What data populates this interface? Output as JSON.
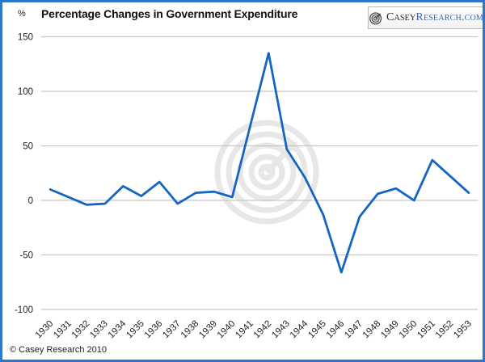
{
  "header": {
    "percent_label": "%",
    "title": "Percentage Changes in Government Expenditure",
    "logo": {
      "brand_primary": "Casey",
      "brand_secondary": "Research.com"
    }
  },
  "footer": {
    "copyright": "© Casey Research 2010"
  },
  "colors": {
    "line": "#1565c4",
    "frame_border": "#2b77cc",
    "grid": "#c6c6c6",
    "tick_text": "#222222",
    "watermark": "#e7e7e7",
    "logo_primary_text": "#222222",
    "logo_secondary_text": "#3a66b0"
  },
  "chart_data": {
    "type": "line",
    "title": "Percentage Changes in Government Expenditure",
    "ylabel": "%",
    "xlabel": "",
    "categories": [
      "1930",
      "1931",
      "1932",
      "1933",
      "1934",
      "1935",
      "1936",
      "1937",
      "1938",
      "1939",
      "1940",
      "1941",
      "1942",
      "1943",
      "1944",
      "1945",
      "1946",
      "1947",
      "1948",
      "1949",
      "1950",
      "1951",
      "1952",
      "1953"
    ],
    "values": [
      10,
      3,
      -4,
      -3,
      13,
      4,
      17,
      -3,
      7,
      8,
      3,
      69,
      135,
      47,
      21,
      -13,
      -66,
      -15,
      6,
      11,
      0,
      37,
      22,
      7
    ],
    "yticks": [
      150,
      100,
      50,
      0,
      -50,
      -100
    ],
    "ylim": [
      -100,
      150
    ],
    "grid": "horizontal",
    "legend": "none",
    "series_color": "#1565c4"
  }
}
